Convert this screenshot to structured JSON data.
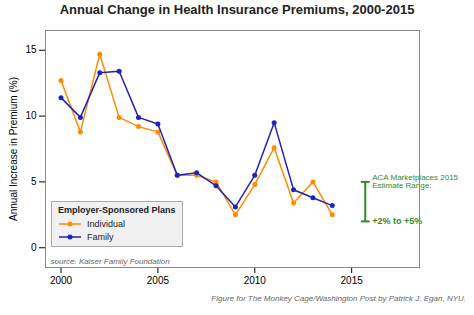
{
  "chart_data": {
    "type": "line",
    "title": "Annual Change in Health Insurance Premiums, 2000-2015",
    "y_label": "Annual Increase in Premium (%)",
    "x": [
      2000,
      2001,
      2002,
      2003,
      2004,
      2005,
      2006,
      2007,
      2008,
      2009,
      2010,
      2011,
      2012,
      2013,
      2014
    ],
    "series": [
      {
        "name": "Individual",
        "color": "#ff8c00",
        "marker": "o",
        "values": [
          12.7,
          8.8,
          14.7,
          9.9,
          9.2,
          8.8,
          5.5,
          5.5,
          5.0,
          2.5,
          4.8,
          7.6,
          3.4,
          5.0,
          2.5
        ]
      },
      {
        "name": "Family",
        "color": "#2222bb",
        "marker": "o",
        "values": [
          11.4,
          9.9,
          13.3,
          13.4,
          9.9,
          9.4,
          5.5,
          5.7,
          4.7,
          3.1,
          5.5,
          9.5,
          4.4,
          3.8,
          3.2
        ]
      }
    ],
    "error_bar": {
      "x": 2015.7,
      "low": 2.0,
      "high": 5.0,
      "color": "#2e8b2e",
      "label": [
        "ACA Marketplaces 2015",
        "Estimate Range:"
      ],
      "range_label": "+2% to +5%"
    },
    "xlim": [
      1999.2,
      2018.5
    ],
    "xticks": [
      2000,
      2005,
      2010,
      2015
    ],
    "ylim": [
      -1.5,
      16.5
    ],
    "yticks": [
      0,
      5,
      10,
      15
    ],
    "grid": false,
    "legend": "lower left",
    "legend_title": "Employer-Sponsored Plans",
    "source_text": "source: Kaiser Family Foundation",
    "footer_text": "Figure for The Monkey Cage/Washington Post by Patrick J. Egan, NYU."
  }
}
